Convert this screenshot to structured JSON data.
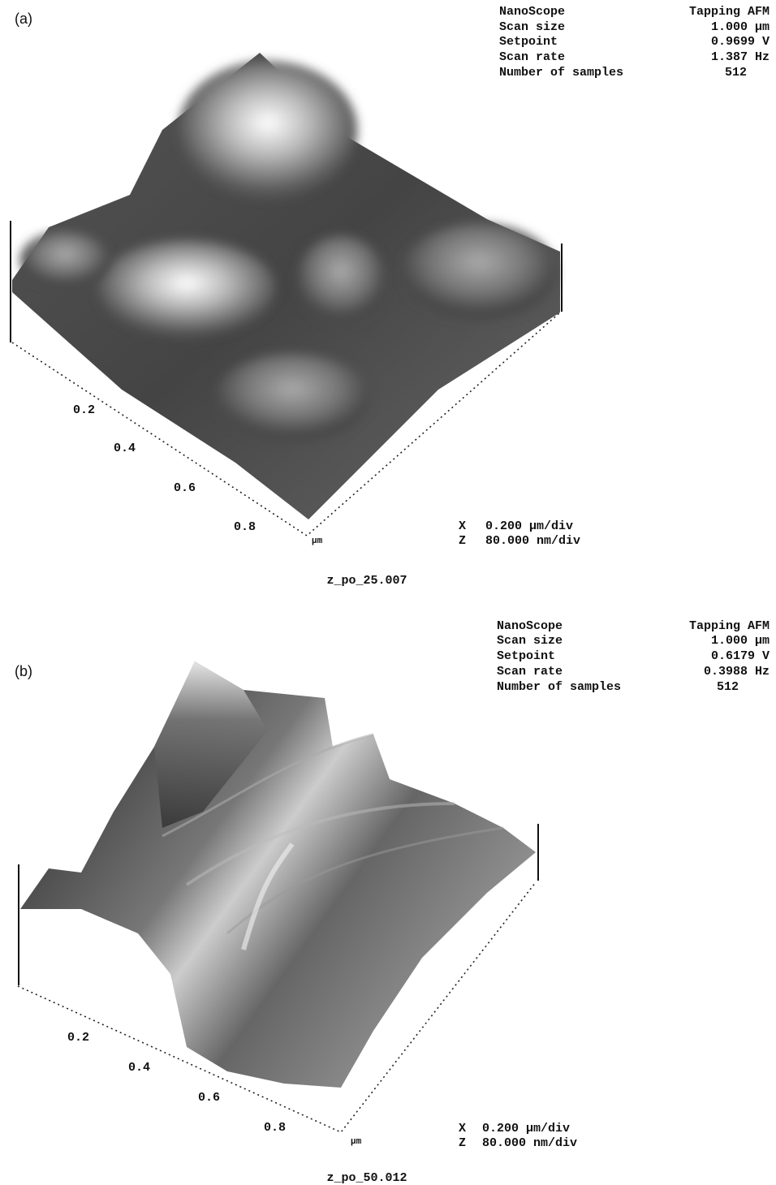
{
  "panels": [
    {
      "label": "(a)",
      "info": [
        [
          "NanoScope",
          "Tapping AFM"
        ],
        [
          "Scan size",
          "1.000 µm"
        ],
        [
          "Setpoint",
          "0.9699 V"
        ],
        [
          "Scan rate",
          "1.387 Hz"
        ],
        [
          "Number of samples",
          "512"
        ]
      ],
      "axis_ticks": [
        "0.2",
        "0.4",
        "0.6",
        "0.8"
      ],
      "axis_unit": "µm",
      "scale": [
        [
          "X",
          "0.200 µm/div"
        ],
        [
          "Z",
          "80.000 nm/div"
        ]
      ],
      "filename": "z_po_25.007"
    },
    {
      "label": "(b)",
      "info": [
        [
          "NanoScope",
          "Tapping AFM"
        ],
        [
          "Scan size",
          "1.000 µm"
        ],
        [
          "Setpoint",
          "0.6179 V"
        ],
        [
          "Scan rate",
          "0.3988 Hz"
        ],
        [
          "Number of samples",
          "512"
        ]
      ],
      "axis_ticks": [
        "0.2",
        "0.4",
        "0.6",
        "0.8"
      ],
      "axis_unit": "µm",
      "scale": [
        [
          "X",
          "0.200 µm/div"
        ],
        [
          "Z",
          "80.000 nm/div"
        ]
      ],
      "filename": "z_po_50.012"
    }
  ]
}
